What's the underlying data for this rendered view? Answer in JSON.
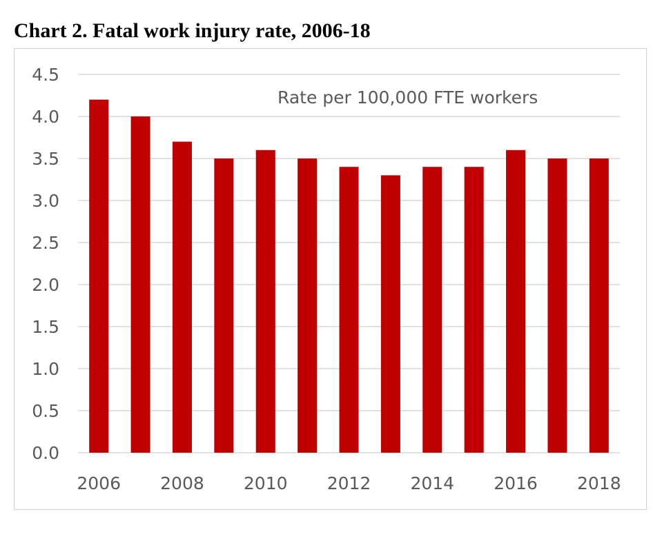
{
  "chart_data": {
    "type": "bar",
    "title": "Chart 2. Fatal work injury rate, 2006-18",
    "annotation": "Rate per 100,000 FTE workers",
    "xlabel": "",
    "ylabel": "",
    "categories": [
      "2006",
      "2007",
      "2008",
      "2009",
      "2010",
      "2011",
      "2012",
      "2013",
      "2014",
      "2015",
      "2016",
      "2017",
      "2018"
    ],
    "x_tick_labels": [
      "2006",
      "",
      "2008",
      "",
      "2010",
      "",
      "2012",
      "",
      "2014",
      "",
      "2016",
      "",
      "2018"
    ],
    "values": [
      4.2,
      4.0,
      3.7,
      3.5,
      3.6,
      3.5,
      3.4,
      3.3,
      3.4,
      3.4,
      3.6,
      3.5,
      3.5
    ],
    "ylim": [
      0,
      4.5
    ],
    "y_ticks": [
      "0.0",
      "0.5",
      "1.0",
      "1.5",
      "2.0",
      "2.5",
      "3.0",
      "3.5",
      "4.0",
      "4.5"
    ],
    "grid": true,
    "legend": "none",
    "bar_color": "#c00000",
    "grid_color": "#d9d9d9",
    "tick_color": "#595959"
  }
}
